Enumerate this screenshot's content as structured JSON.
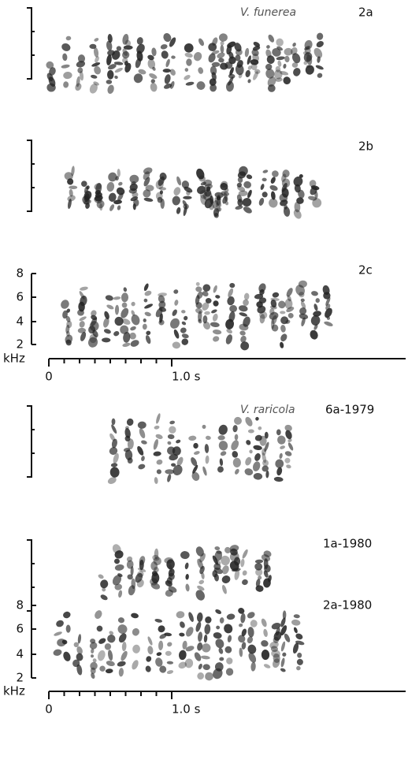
{
  "panels": [
    {
      "species": "V. funerea",
      "label": "2a"
    },
    {
      "label": "2b"
    },
    {
      "label": "2c",
      "frequency_ticks": [
        "8",
        "6",
        "4",
        "2"
      ],
      "frequency_unit": "kHz",
      "time_ticks": [
        "0",
        "1.0 s"
      ]
    },
    {
      "species": "V. raricola",
      "label": "6a-1979"
    },
    {
      "label": "1a-1980"
    },
    {
      "label": "2a-1980",
      "frequency_ticks": [
        "8",
        "6",
        "4",
        "2"
      ],
      "frequency_unit": "kHz",
      "time_ticks": [
        "0",
        "1.0 s"
      ]
    }
  ]
}
